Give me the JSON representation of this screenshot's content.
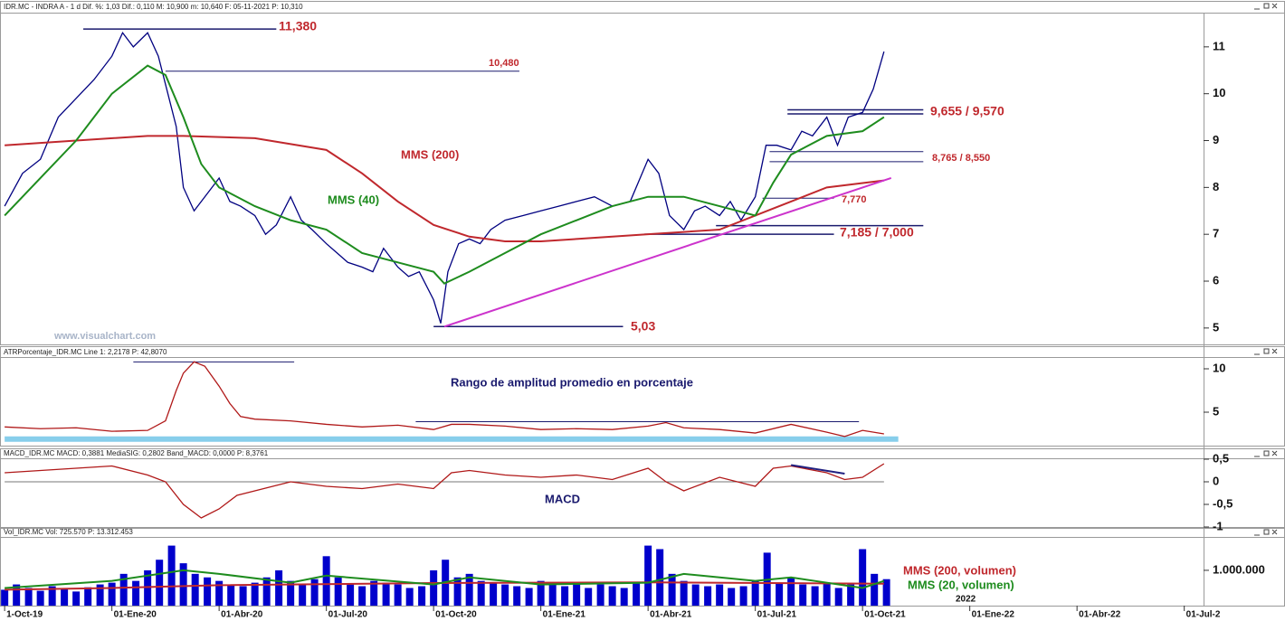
{
  "chart_data": [
    {
      "type": "line",
      "header": "IDR.MC - INDRA A - 1 d  Dif. %: 1,03  Dif.: 0,110  M: 10,900  m: 10,640  F: 05-11-2021  P: 10,310",
      "watermark": "www.visualchart.com",
      "color": "#000080",
      "xlim": [
        -0.13,
        33.54
      ],
      "ylim": [
        4.65,
        11.73
      ],
      "yticks": [
        5,
        6,
        7,
        8,
        9,
        10,
        11
      ],
      "x": [
        0,
        0.5,
        1,
        1.5,
        2,
        2.5,
        3,
        3.3,
        3.6,
        4,
        4.3,
        4.5,
        4.8,
        5,
        5.3,
        5.6,
        6,
        6.3,
        6.6,
        7,
        7.3,
        7.6,
        8,
        8.3,
        8.6,
        9,
        9.3,
        9.6,
        10,
        10.3,
        10.6,
        11,
        11.3,
        11.6,
        12,
        12.2,
        12.4,
        12.7,
        13,
        13.3,
        13.6,
        14,
        14.5,
        15,
        15.5,
        16,
        16.5,
        17,
        17.5,
        18,
        18.3,
        18.6,
        19,
        19.3,
        19.6,
        20,
        20.3,
        20.6,
        21,
        21.3,
        21.6,
        22,
        22.3,
        22.6,
        23,
        23.3,
        23.6,
        24,
        24.3,
        24.6
      ],
      "values": [
        7.6,
        8.3,
        8.6,
        9.5,
        9.9,
        10.3,
        10.8,
        11.3,
        11.0,
        11.3,
        10.8,
        10.2,
        9.3,
        8.0,
        7.5,
        7.8,
        8.2,
        7.7,
        7.6,
        7.4,
        7.0,
        7.2,
        7.8,
        7.3,
        7.1,
        6.8,
        6.6,
        6.4,
        6.3,
        6.2,
        6.7,
        6.3,
        6.1,
        6.2,
        5.6,
        5.1,
        6.2,
        6.8,
        6.9,
        6.8,
        7.1,
        7.3,
        7.4,
        7.5,
        7.6,
        7.7,
        7.8,
        7.6,
        7.7,
        8.6,
        8.3,
        7.4,
        7.1,
        7.5,
        7.6,
        7.4,
        7.7,
        7.3,
        7.8,
        8.9,
        8.9,
        8.8,
        9.2,
        9.1,
        9.5,
        8.9,
        9.5,
        9.6,
        10.1,
        10.9
      ],
      "series": [
        {
          "name": "MMS (200)",
          "color": "#c0282d",
          "x": [
            0,
            2,
            4,
            5,
            7,
            9,
            10,
            11,
            12,
            13,
            14,
            15,
            16,
            17,
            18,
            19,
            20,
            21,
            22,
            23,
            24.6
          ],
          "values": [
            8.9,
            9.0,
            9.1,
            9.1,
            9.05,
            8.8,
            8.3,
            7.7,
            7.2,
            6.95,
            6.85,
            6.85,
            6.9,
            6.95,
            7.0,
            7.05,
            7.1,
            7.4,
            7.7,
            8.0,
            8.15
          ]
        },
        {
          "name": "MMS (40)",
          "color": "#1e8c1e",
          "x": [
            0,
            1,
            2,
            3,
            4,
            4.5,
            5,
            5.5,
            6,
            7,
            8,
            9,
            10,
            11,
            12,
            12.3,
            13,
            14,
            15,
            16,
            17,
            18,
            19,
            20,
            21,
            21.5,
            22,
            23,
            24,
            24.6
          ],
          "values": [
            7.4,
            8.2,
            9.0,
            10.0,
            10.6,
            10.4,
            9.5,
            8.5,
            8.0,
            7.6,
            7.3,
            7.1,
            6.6,
            6.4,
            6.2,
            5.95,
            6.2,
            6.6,
            7.0,
            7.3,
            7.6,
            7.8,
            7.8,
            7.6,
            7.4,
            8.1,
            8.7,
            9.1,
            9.2,
            9.5
          ]
        }
      ],
      "trendlines": [
        {
          "from": [
            12.3,
            5.03
          ],
          "to": [
            24.8,
            8.2
          ],
          "color": "#cc33cc"
        }
      ],
      "levels": [
        {
          "label": "11,380",
          "lines": [
            {
              "value": 11.38,
              "x": [
                2.2,
                7.6
              ]
            }
          ]
        },
        {
          "label": "10,480",
          "lines": [
            {
              "value": 10.48,
              "x": [
                4.5,
                14.4
              ]
            }
          ]
        },
        {
          "label": "9,655 / 9,570",
          "lines": [
            {
              "value": 9.655,
              "x": [
                21.9,
                25.7
              ]
            },
            {
              "value": 9.57,
              "x": [
                21.9,
                25.7
              ]
            }
          ]
        },
        {
          "label": "8,765 / 8,550",
          "lines": [
            {
              "value": 8.765,
              "x": [
                21.4,
                25.7
              ]
            },
            {
              "value": 8.55,
              "x": [
                21.4,
                25.7
              ]
            }
          ]
        },
        {
          "label": "7,770",
          "lines": [
            {
              "value": 7.77,
              "x": [
                21.2,
                23.2
              ]
            }
          ]
        },
        {
          "label": "7,185 / 7,000",
          "lines": [
            {
              "value": 7.185,
              "x": [
                19.9,
                25.7
              ]
            },
            {
              "value": 7.0,
              "x": [
                17.9,
                23.2
              ]
            }
          ]
        },
        {
          "label": "5,03",
          "lines": [
            {
              "value": 5.03,
              "x": [
                12.0,
                17.3
              ]
            }
          ]
        }
      ]
    },
    {
      "type": "line",
      "header": "ATRPorcentaje_IDR.MC  Line 1: 2,2178  P: 42,8070",
      "annotation": "Rango de amplitud promedio en porcentaje",
      "color": "#b01818",
      "xlim": [
        -0.13,
        33.54
      ],
      "ylim": [
        1.25,
        11.25
      ],
      "yticks": [
        5,
        10
      ],
      "x": [
        0,
        1,
        2,
        3,
        4,
        4.5,
        4.8,
        5,
        5.3,
        5.6,
        6,
        6.3,
        6.6,
        7,
        8,
        9,
        10,
        11,
        12,
        12.5,
        13,
        14,
        15,
        16,
        17,
        18,
        18.5,
        19,
        20,
        21,
        22,
        23,
        23.5,
        24,
        24.6
      ],
      "values": [
        3.3,
        3.1,
        3.2,
        2.8,
        2.9,
        4.0,
        7.5,
        9.5,
        10.8,
        10.3,
        8,
        6,
        4.5,
        4.2,
        4.0,
        3.6,
        3.3,
        3.5,
        3.0,
        3.6,
        3.6,
        3.4,
        3.0,
        3.1,
        3.0,
        3.4,
        3.8,
        3.2,
        3.0,
        2.6,
        3.6,
        2.7,
        2.2,
        2.9,
        2.5
      ],
      "band": {
        "value": 1.9,
        "x": [
          0,
          25
        ],
        "color": "#87ceeb"
      },
      "levels": [
        {
          "lines": [
            {
              "value": 10.8,
              "x": [
                3.6,
                8.1
              ]
            }
          ]
        },
        {
          "lines": [
            {
              "value": 3.9,
              "x": [
                11.5,
                23.9
              ]
            }
          ]
        }
      ]
    },
    {
      "type": "line",
      "header": "MACD_IDR.MC  MACD: 0,3881  MediaSIG: 0,2802  Band_MACD: 0,0000  P: 8,3761",
      "annotation": "MACD",
      "color": "#b01818",
      "xlim": [
        -0.13,
        33.54
      ],
      "ylim": [
        -1,
        0.5
      ],
      "yticks": [
        {
          "value": 0.5,
          "label": "0,5"
        },
        0,
        {
          "value": -0.5,
          "label": "-0,5"
        },
        -1
      ],
      "x": [
        0,
        1,
        2,
        3,
        4,
        4.5,
        5,
        5.5,
        6,
        6.5,
        7,
        8,
        9,
        10,
        11,
        12,
        12.5,
        13,
        14,
        15,
        16,
        17,
        18,
        18.5,
        19,
        20,
        21,
        21.5,
        22,
        23,
        23.5,
        24,
        24.6
      ],
      "values": [
        0.2,
        0.25,
        0.3,
        0.35,
        0.15,
        0,
        -0.5,
        -0.8,
        -0.6,
        -0.3,
        -0.2,
        0,
        -0.1,
        -0.15,
        -0.05,
        -0.15,
        0.2,
        0.25,
        0.15,
        0.1,
        0.15,
        0.05,
        0.3,
        0,
        -0.2,
        0.1,
        -0.1,
        0.3,
        0.35,
        0.2,
        0.05,
        0.1,
        0.4
      ],
      "levels": [
        {
          "lines": [
            {
              "value": 0,
              "x": [
                0,
                24.6
              ]
            }
          ]
        }
      ],
      "trendlines": [
        {
          "from": [
            22,
            0.37
          ],
          "to": [
            23.5,
            0.18
          ],
          "color": "#202080"
        }
      ]
    },
    {
      "type": "bar",
      "header": "Vol_IDR.MC  Vol: 725.570  P: 13.312.453",
      "color": "#0000cc",
      "year_label": "2022",
      "xlim": [
        -0.13,
        33.54
      ],
      "ylim": [
        0,
        1920000
      ],
      "yticks": [
        {
          "value": 1000000,
          "label": "1.000.000"
        }
      ],
      "xticks": [
        {
          "value": 0,
          "label": "1-Oct-19"
        },
        {
          "value": 3,
          "label": "01-Ene-20"
        },
        {
          "value": 6,
          "label": "01-Abr-20"
        },
        {
          "value": 9,
          "label": "01-Jul-20"
        },
        {
          "value": 12,
          "label": "01-Oct-20"
        },
        {
          "value": 15,
          "label": "01-Ene-21"
        },
        {
          "value": 18,
          "label": "01-Abr-21"
        },
        {
          "value": 21,
          "label": "01-Jul-21"
        },
        {
          "value": 24,
          "label": "01-Oct-21"
        },
        {
          "value": 27,
          "label": "01-Ene-22"
        },
        {
          "value": 30,
          "label": "01-Abr-22"
        },
        {
          "value": 33,
          "label": "01-Jul-2"
        }
      ],
      "x": [
        0,
        0.33,
        0.67,
        1,
        1.33,
        1.67,
        2,
        2.33,
        2.67,
        3,
        3.33,
        3.67,
        4,
        4.33,
        4.67,
        5,
        5.33,
        5.67,
        6,
        6.33,
        6.67,
        7,
        7.33,
        7.67,
        8,
        8.33,
        8.67,
        9,
        9.33,
        9.67,
        10,
        10.33,
        10.67,
        11,
        11.33,
        11.67,
        12,
        12.33,
        12.67,
        13,
        13.33,
        13.67,
        14,
        14.33,
        14.67,
        15,
        15.33,
        15.67,
        16,
        16.33,
        16.67,
        17,
        17.33,
        17.67,
        18,
        18.33,
        18.67,
        19,
        19.33,
        19.67,
        20,
        20.33,
        20.67,
        21,
        21.33,
        21.67,
        22,
        22.33,
        22.67,
        23,
        23.33,
        23.67,
        24,
        24.33,
        24.67
      ],
      "values": [
        450000,
        600000,
        500000,
        420000,
        550000,
        480000,
        400000,
        520000,
        600000,
        650000,
        900000,
        700000,
        1000000,
        1300000,
        1700000,
        1200000,
        900000,
        800000,
        700000,
        600000,
        550000,
        650000,
        800000,
        1000000,
        700000,
        600000,
        750000,
        1400000,
        800000,
        600000,
        550000,
        700000,
        650000,
        600000,
        500000,
        550000,
        1000000,
        1300000,
        800000,
        900000,
        700000,
        650000,
        600000,
        550000,
        500000,
        700000,
        600000,
        550000,
        650000,
        500000,
        600000,
        550000,
        500000,
        650000,
        1700000,
        1600000,
        900000,
        700000,
        600000,
        550000,
        600000,
        500000,
        550000,
        700000,
        1500000,
        650000,
        800000,
        600000,
        550000,
        650000,
        500000,
        600000,
        1600000,
        900000,
        750000
      ],
      "series": [
        {
          "name": "MMS (200, volumen)",
          "color": "#c0282d",
          "x": [
            0,
            3,
            6,
            12,
            18,
            24.6
          ],
          "values": [
            450000,
            500000,
            580000,
            640000,
            660000,
            620000
          ]
        },
        {
          "name": "MMS (20, volumen)",
          "color": "#1e8c1e",
          "x": [
            0,
            3,
            5,
            6,
            8,
            9,
            12,
            13,
            15,
            18,
            19,
            21,
            22,
            24,
            24.6
          ],
          "values": [
            500000,
            700000,
            1000000,
            900000,
            650000,
            850000,
            600000,
            800000,
            600000,
            650000,
            900000,
            700000,
            800000,
            500000,
            700000
          ]
        }
      ]
    }
  ]
}
